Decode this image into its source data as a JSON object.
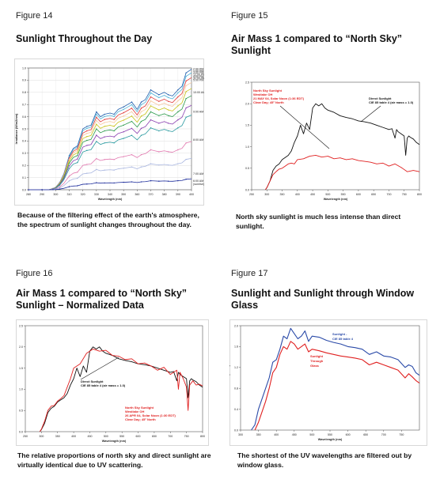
{
  "figures": [
    {
      "number": "Figure 14",
      "title": "Sunlight Throughout the Day",
      "caption": "Because of the filtering effect of the earth's atmosphere, the spectrum of sunlight changes throughout the day."
    },
    {
      "number": "Figure 15",
      "title": "Air Mass 1 compared to “North Sky” Sunlight",
      "caption": "North sky sunlight is much less intense than direct sunlight."
    },
    {
      "number": "Figure 16",
      "title": "Air Mass 1 compared to “North Sky” Sunlight – Normalized Data",
      "caption": "The relative proportions of north sky and direct sunlight are virtually identical due to UV scattering."
    },
    {
      "number": "Figure 17",
      "title": "Sunlight and Sunlight through Window Glass",
      "caption": "The shortest of the UV wavelengths are filtered out by window glass."
    }
  ],
  "chart_data": [
    {
      "type": "line",
      "xlabel": "Wavelength (nm)",
      "ylabel": "Irradiance (W/m2/nm)",
      "xlim": [
        280,
        400
      ],
      "ylim": [
        0,
        1.0
      ],
      "x_ticks": [
        "280",
        "290",
        "300",
        "310",
        "320",
        "330",
        "340",
        "350",
        "360",
        "370",
        "380",
        "390",
        "400"
      ],
      "y_ticks": [
        "0.0",
        "0.1",
        "0.2",
        "0.3",
        "0.4",
        "0.5",
        "0.6",
        "0.7",
        "0.8",
        "0.9",
        "1.0"
      ],
      "grid": true,
      "x": [
        280,
        285,
        290,
        295,
        298,
        300,
        303,
        306,
        310,
        313,
        316,
        320,
        323,
        326,
        330,
        333,
        336,
        340,
        343,
        346,
        350,
        353,
        356,
        360,
        363,
        366,
        370,
        373,
        376,
        380,
        383,
        386,
        390,
        393,
        396,
        400
      ],
      "shape": [
        0,
        0,
        0,
        0,
        0.01,
        0.02,
        0.06,
        0.13,
        0.28,
        0.34,
        0.36,
        0.5,
        0.52,
        0.53,
        0.64,
        0.6,
        0.62,
        0.63,
        0.62,
        0.66,
        0.68,
        0.7,
        0.72,
        0.66,
        0.72,
        0.74,
        0.82,
        0.8,
        0.78,
        0.8,
        0.78,
        0.77,
        0.82,
        0.85,
        0.96,
        0.99
      ],
      "series": [
        {
          "name": "2:00 PM",
          "scale": 1.0,
          "color": "#1f5fae"
        },
        {
          "name": "1:00 PM",
          "scale": 0.97,
          "color": "#4fb3d9"
        },
        {
          "name": "3:00 PM",
          "scale": 0.93,
          "color": "#e03a3a"
        },
        {
          "name": "12:00 PM",
          "scale": 0.89,
          "color": "#f7c9a0"
        },
        {
          "name": "4:00 PM",
          "scale": 0.84,
          "color": "#c8c31a"
        },
        {
          "name": "11:00 AM",
          "scale": 0.78,
          "color": "#2a9a4a"
        },
        {
          "name": "5:00 PM",
          "scale": 0.7,
          "color": "#8a3fb0"
        },
        {
          "name": "10:00 AM",
          "scale": 0.62,
          "color": "#2a9aa0"
        },
        {
          "name": "9:00 AM",
          "scale": 0.4,
          "color": "#e27ab0"
        },
        {
          "name": "8:00 AM",
          "scale": 0.26,
          "color": "#a9b6e0"
        },
        {
          "name": "7:00 AM",
          "scale": 0.09,
          "color": "#1a2a9a"
        }
      ],
      "right_labels": [
        {
          "text": "2:00 PM",
          "y": 0.99
        },
        {
          "text": "1:00 PM",
          "y": 0.975
        },
        {
          "text": "3:00 PM",
          "y": 0.96
        },
        {
          "text": "12:00 PM",
          "y": 0.945
        },
        {
          "text": "4:00 PM",
          "y": 0.93
        },
        {
          "text": "11:00 AM",
          "y": 0.915
        },
        {
          "text": "5:00 PM",
          "y": 0.9
        },
        {
          "text": "10:00 AM",
          "y": 0.8
        },
        {
          "text": "9:00 AM",
          "y": 0.64
        },
        {
          "text": "8:00 AM",
          "y": 0.41
        },
        {
          "text": "7:00 AM",
          "y": 0.13
        },
        {
          "text": "6:00 AM",
          "y": 0.07
        },
        {
          "text": "(sunrise)",
          "y": 0.045
        }
      ]
    },
    {
      "type": "line",
      "xlabel": "Wavelength (nm)",
      "ylabel": "Irradiance (W/m2)",
      "xlim": [
        250,
        800
      ],
      "ylim": [
        0,
        2.5
      ],
      "x_ticks": [
        "250",
        "300",
        "350",
        "400",
        "450",
        "500",
        "550",
        "600",
        "650",
        "700",
        "750",
        "800"
      ],
      "y_ticks": [
        "0.0",
        "0.5",
        "1.0",
        "1.5",
        "2.0",
        "2.5"
      ],
      "grid": false,
      "series": [
        {
          "name": "Direct Sunlight",
          "color": "#111111",
          "x": [
            295,
            300,
            310,
            320,
            330,
            340,
            350,
            360,
            370,
            380,
            390,
            400,
            410,
            420,
            430,
            440,
            450,
            460,
            470,
            480,
            490,
            500,
            520,
            540,
            560,
            580,
            600,
            620,
            640,
            660,
            680,
            700,
            710,
            720,
            725,
            730,
            740,
            750,
            755,
            760,
            765,
            770,
            780,
            790,
            800
          ],
          "y": [
            0.0,
            0.05,
            0.2,
            0.45,
            0.55,
            0.6,
            0.7,
            0.75,
            0.8,
            0.9,
            1.1,
            1.25,
            1.5,
            1.3,
            1.55,
            1.4,
            1.9,
            2.0,
            1.95,
            2.0,
            1.9,
            1.85,
            1.8,
            1.72,
            1.68,
            1.65,
            1.6,
            1.58,
            1.55,
            1.5,
            1.45,
            1.4,
            1.42,
            1.2,
            1.4,
            1.35,
            1.3,
            1.25,
            0.8,
            1.2,
            1.25,
            1.22,
            1.18,
            1.1,
            1.05
          ]
        },
        {
          "name": "North Sky Sunlight",
          "color": "#e02020",
          "x": [
            295,
            300,
            310,
            320,
            330,
            340,
            350,
            360,
            370,
            380,
            390,
            400,
            420,
            440,
            460,
            480,
            500,
            520,
            540,
            560,
            580,
            600,
            620,
            640,
            660,
            680,
            700,
            720,
            740,
            760,
            780,
            800
          ],
          "y": [
            0.0,
            0.05,
            0.2,
            0.35,
            0.42,
            0.48,
            0.5,
            0.55,
            0.6,
            0.62,
            0.6,
            0.7,
            0.72,
            0.78,
            0.8,
            0.76,
            0.78,
            0.72,
            0.74,
            0.7,
            0.72,
            0.68,
            0.66,
            0.64,
            0.6,
            0.62,
            0.55,
            0.6,
            0.52,
            0.42,
            0.45,
            0.42
          ]
        }
      ],
      "annotations": [
        {
          "text": "North Sky Sunlight",
          "color": "#e02020"
        },
        {
          "text": "Westlake OH",
          "color": "#e02020"
        },
        {
          "text": "21 MAY 04, Solar Noon (1:36 EDT)",
          "color": "#e02020"
        },
        {
          "text": "Clear Day; 45° North",
          "color": "#e02020"
        },
        {
          "text": "Direct Sunlight",
          "color": "#111111"
        },
        {
          "text": "CIE 85 table 4 (air mass = 1.0)",
          "color": "#111111"
        }
      ]
    },
    {
      "type": "line",
      "xlabel": "Wavelength (nm)",
      "ylabel": "Irradiance (W/m2)",
      "xlim": [
        250,
        800
      ],
      "ylim": [
        0,
        2.5
      ],
      "x_ticks": [
        "250",
        "300",
        "350",
        "400",
        "450",
        "500",
        "550",
        "600",
        "650",
        "700",
        "750",
        "800"
      ],
      "y_ticks": [
        "0.0",
        "0.5",
        "1.0",
        "1.5",
        "2.0",
        "2.5"
      ],
      "grid": false,
      "series": [
        {
          "name": "Direct Sunlight",
          "color": "#111111",
          "x": [
            295,
            300,
            310,
            320,
            330,
            340,
            350,
            360,
            370,
            380,
            390,
            400,
            410,
            420,
            430,
            440,
            450,
            460,
            470,
            480,
            490,
            500,
            520,
            540,
            560,
            580,
            600,
            620,
            640,
            660,
            680,
            700,
            710,
            720,
            725,
            730,
            740,
            750,
            755,
            760,
            765,
            770,
            780,
            790,
            800
          ],
          "y": [
            0.0,
            0.05,
            0.2,
            0.45,
            0.55,
            0.6,
            0.7,
            0.75,
            0.8,
            0.9,
            1.1,
            1.25,
            1.5,
            1.3,
            1.55,
            1.4,
            1.9,
            2.0,
            1.95,
            2.0,
            1.9,
            1.85,
            1.8,
            1.72,
            1.68,
            1.65,
            1.6,
            1.58,
            1.55,
            1.5,
            1.45,
            1.4,
            1.42,
            1.2,
            1.4,
            1.35,
            1.3,
            1.25,
            0.8,
            1.2,
            1.25,
            1.22,
            1.18,
            1.1,
            1.05
          ]
        },
        {
          "name": "North Sky Sunlight",
          "color": "#e02020",
          "x": [
            295,
            300,
            310,
            320,
            330,
            340,
            350,
            360,
            370,
            380,
            390,
            400,
            420,
            440,
            460,
            480,
            500,
            520,
            540,
            560,
            580,
            600,
            620,
            640,
            660,
            680,
            700,
            720,
            725,
            730,
            740,
            750,
            755,
            760,
            770,
            780,
            790,
            800
          ],
          "y": [
            0.0,
            0.06,
            0.25,
            0.5,
            0.6,
            0.62,
            0.72,
            0.78,
            0.85,
            1.05,
            1.25,
            1.5,
            1.6,
            1.85,
            1.95,
            1.9,
            1.92,
            1.8,
            1.78,
            1.7,
            1.72,
            1.6,
            1.62,
            1.55,
            1.45,
            1.52,
            1.35,
            1.45,
            1.0,
            1.4,
            1.25,
            1.05,
            0.5,
            1.1,
            1.2,
            1.1,
            1.12,
            1.08
          ]
        }
      ],
      "annotations": [
        {
          "text": "Direct Sunlight",
          "color": "#111111"
        },
        {
          "text": "CIE 85 table 4 (air mass = 1.0)",
          "color": "#111111"
        },
        {
          "text": "North Sky Sunlight",
          "color": "#e02020"
        },
        {
          "text": "Westlake OH",
          "color": "#e02020"
        },
        {
          "text": "26 APR 04, Solar Noon (1:30 EDT)",
          "color": "#e02020"
        },
        {
          "text": "Clear Day; 45° North",
          "color": "#e02020"
        }
      ]
    },
    {
      "type": "line",
      "xlabel": "Wavelength (nm)",
      "ylabel": "Irradiance (W/m2)",
      "xlim": [
        300,
        800
      ],
      "ylim": [
        0,
        2.0
      ],
      "x_ticks": [
        "300",
        "350",
        "400",
        "450",
        "500",
        "550",
        "600",
        "650",
        "700",
        "750"
      ],
      "y_ticks": [
        "0.0",
        "0.4",
        "0.8",
        "1.2",
        "1.6",
        "2.0"
      ],
      "grid": false,
      "series": [
        {
          "name": "Sunlight - CIE 85 table 4",
          "color": "#2a4aa8",
          "x": [
            330,
            340,
            350,
            360,
            370,
            380,
            390,
            400,
            410,
            420,
            430,
            440,
            450,
            460,
            470,
            480,
            490,
            500,
            520,
            540,
            560,
            580,
            600,
            620,
            640,
            660,
            680,
            700,
            720,
            740,
            760,
            770,
            780,
            790,
            800
          ],
          "y": [
            0.0,
            0.1,
            0.4,
            0.6,
            0.8,
            1.0,
            1.3,
            1.35,
            1.55,
            1.8,
            1.75,
            1.95,
            1.85,
            1.75,
            1.8,
            1.9,
            1.7,
            1.8,
            1.78,
            1.72,
            1.68,
            1.65,
            1.6,
            1.58,
            1.55,
            1.45,
            1.5,
            1.42,
            1.4,
            1.35,
            1.2,
            1.25,
            1.22,
            1.1,
            1.05
          ]
        },
        {
          "name": "Sunlight Through Window Glass",
          "color": "#e02020",
          "x": [
            340,
            350,
            360,
            370,
            380,
            390,
            400,
            410,
            420,
            430,
            440,
            450,
            460,
            470,
            480,
            490,
            500,
            520,
            540,
            560,
            580,
            600,
            620,
            640,
            660,
            680,
            700,
            720,
            740,
            760,
            770,
            780,
            790,
            800
          ],
          "y": [
            0.0,
            0.15,
            0.35,
            0.55,
            0.8,
            1.1,
            1.2,
            1.45,
            1.6,
            1.55,
            1.7,
            1.65,
            1.55,
            1.6,
            1.65,
            1.5,
            1.55,
            1.52,
            1.48,
            1.45,
            1.42,
            1.4,
            1.38,
            1.35,
            1.25,
            1.3,
            1.25,
            1.2,
            1.15,
            1.0,
            1.08,
            1.02,
            0.95,
            0.9
          ]
        }
      ],
      "annotations": [
        {
          "text": "Sunlight -",
          "color": "#2a4aa8"
        },
        {
          "text": "CIE 85 table 4",
          "color": "#2a4aa8"
        },
        {
          "text": "Sunlight",
          "color": "#e02020"
        },
        {
          "text": "Through",
          "color": "#e02020"
        },
        {
          "text": "Glass",
          "color": "#e02020"
        }
      ]
    }
  ]
}
